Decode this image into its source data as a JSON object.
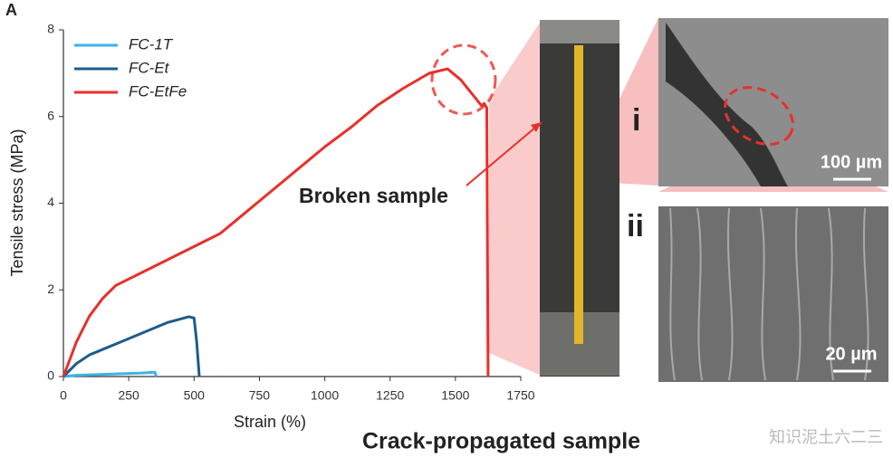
{
  "figure": {
    "panel_label": "A",
    "broken_label": "Broken sample",
    "crack_label": "Crack-propagated sample",
    "inset_i": "i",
    "inset_ii": "ii",
    "scale_i": "100 µm",
    "scale_ii": "20 µm",
    "watermark": "知识泥土六二三"
  },
  "chart_data": {
    "type": "line",
    "xlabel": "Strain (%)",
    "ylabel": "Tensile stress (MPa)",
    "xlim": [
      0,
      1750
    ],
    "ylim": [
      0,
      8
    ],
    "xticks": [
      0,
      250,
      500,
      750,
      1000,
      1250,
      1500,
      1750
    ],
    "yticks": [
      0,
      2,
      4,
      6,
      8
    ],
    "legend": "upper left",
    "series": [
      {
        "name": "FC-1T",
        "color": "#3bb3e6",
        "x": [
          0,
          50,
          100,
          200,
          300,
          350,
          355
        ],
        "values": [
          0,
          0.03,
          0.04,
          0.06,
          0.08,
          0.1,
          0
        ]
      },
      {
        "name": "FC-Et",
        "color": "#1d5c8c",
        "x": [
          0,
          50,
          100,
          200,
          300,
          400,
          480,
          500,
          510,
          520
        ],
        "values": [
          0,
          0.3,
          0.5,
          0.75,
          1.0,
          1.25,
          1.38,
          1.35,
          0.8,
          0
        ]
      },
      {
        "name": "FC-EtFe",
        "color": "#e8302a",
        "x": [
          0,
          50,
          100,
          150,
          200,
          300,
          400,
          500,
          600,
          700,
          800,
          900,
          1000,
          1100,
          1200,
          1300,
          1400,
          1470,
          1520,
          1560,
          1600,
          1610,
          1620,
          1625
        ],
        "values": [
          0,
          0.8,
          1.4,
          1.8,
          2.1,
          2.4,
          2.7,
          3.0,
          3.3,
          3.8,
          4.3,
          4.8,
          5.3,
          5.75,
          6.25,
          6.65,
          7.0,
          7.1,
          6.85,
          6.55,
          6.25,
          6.3,
          6.2,
          0
        ]
      }
    ]
  }
}
